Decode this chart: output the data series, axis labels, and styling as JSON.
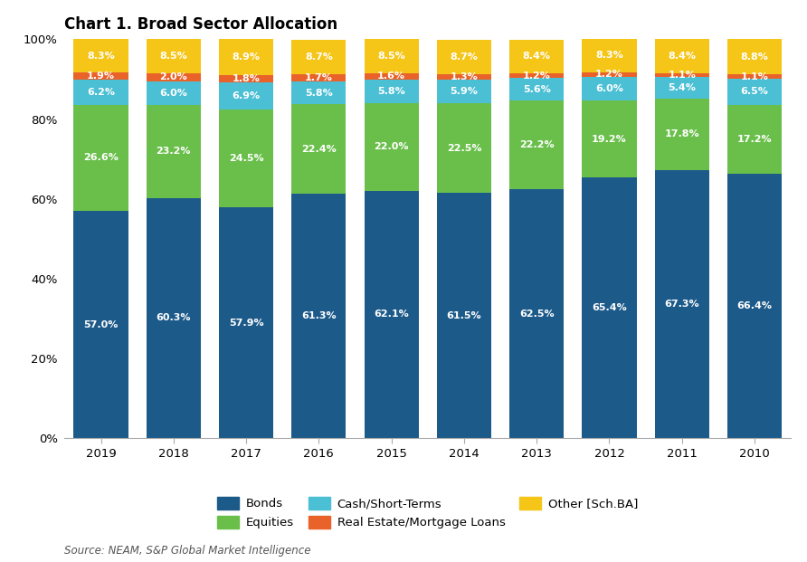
{
  "title": "Chart 1. Broad Sector Allocation",
  "source": "Source: NEAM, S&P Global Market Intelligence",
  "years": [
    "2019",
    "2018",
    "2017",
    "2016",
    "2015",
    "2014",
    "2013",
    "2012",
    "2011",
    "2010"
  ],
  "categories": [
    "Bonds",
    "Equities",
    "Cash/Short-Terms",
    "Real Estate/Mortgage Loans",
    "Other [Sch.BA]"
  ],
  "colors": [
    "#1c5a8a",
    "#6abf4b",
    "#4bbfd4",
    "#e8622a",
    "#f5c518"
  ],
  "data": {
    "Bonds": [
      57.0,
      60.3,
      57.9,
      61.3,
      62.1,
      61.5,
      62.5,
      65.4,
      67.3,
      66.4
    ],
    "Equities": [
      26.6,
      23.2,
      24.5,
      22.4,
      22.0,
      22.5,
      22.2,
      19.2,
      17.8,
      17.2
    ],
    "Cash/Short-Terms": [
      6.2,
      6.0,
      6.9,
      5.8,
      5.8,
      5.9,
      5.6,
      6.0,
      5.4,
      6.5
    ],
    "Real Estate/Mortgage Loans": [
      1.9,
      2.0,
      1.8,
      1.7,
      1.6,
      1.3,
      1.2,
      1.2,
      1.1,
      1.1
    ],
    "Other [Sch.BA]": [
      8.3,
      8.5,
      8.9,
      8.7,
      8.5,
      8.7,
      8.4,
      8.3,
      8.4,
      8.8
    ]
  },
  "labels": {
    "Bonds": [
      "57.0%",
      "60.3%",
      "57.9%",
      "61.3%",
      "62.1%",
      "61.5%",
      "62.5%",
      "65.4%",
      "67.3%",
      "66.4%"
    ],
    "Equities": [
      "26.6%",
      "23.2%",
      "24.5%",
      "22.4%",
      "22.0%",
      "22.5%",
      "22.2%",
      "19.2%",
      "17.8%",
      "17.2%"
    ],
    "Cash/Short-Terms": [
      "6.2%",
      "6.0%",
      "6.9%",
      "5.8%",
      "5.8%",
      "5.9%",
      "5.6%",
      "6.0%",
      "5.4%",
      "6.5%"
    ],
    "Real Estate/Mortgage Loans": [
      "1.9%",
      "2.0%",
      "1.8%",
      "1.7%",
      "1.6%",
      "1.3%",
      "1.2%",
      "1.2%",
      "1.1%",
      "1.1%"
    ],
    "Other [Sch.BA]": [
      "8.3%",
      "8.5%",
      "8.9%",
      "8.7%",
      "8.5%",
      "8.7%",
      "8.4%",
      "8.3%",
      "8.4%",
      "8.8%"
    ]
  },
  "ylim": [
    0,
    100
  ],
  "yticks": [
    0,
    20,
    40,
    60,
    80,
    100
  ],
  "ytick_labels": [
    "0%",
    "20%",
    "40%",
    "60%",
    "80%",
    "100%"
  ],
  "background_color": "#ffffff",
  "bar_width": 0.75,
  "title_fontsize": 12,
  "label_fontsize": 8.0,
  "legend_fontsize": 9.5,
  "source_fontsize": 8.5
}
